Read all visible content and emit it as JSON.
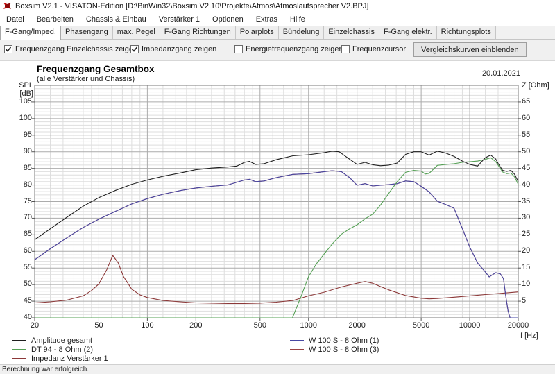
{
  "window": {
    "title": "Boxsim V2.1 - VISATON-Edition [D:\\BinWin32\\Boxsim V2.10\\Projekte\\Atmos\\Atmoslautsprecher V2.BPJ]"
  },
  "menu": {
    "items": [
      "Datei",
      "Bearbeiten",
      "Chassis & Einbau",
      "Verstärker 1",
      "Optionen",
      "Extras",
      "Hilfe"
    ]
  },
  "tabs": {
    "items": [
      {
        "label": "F-Gang/Imped.",
        "active": true
      },
      {
        "label": "Phasengang",
        "active": false
      },
      {
        "label": "max. Pegel",
        "active": false
      },
      {
        "label": "F-Gang Richtungen",
        "active": false
      },
      {
        "label": "Polarplots",
        "active": false
      },
      {
        "label": "Bündelung",
        "active": false
      },
      {
        "label": "Einzelchassis",
        "active": false
      },
      {
        "label": "F-Gang elektr.",
        "active": false
      },
      {
        "label": "Richtungsplots",
        "active": false
      }
    ]
  },
  "toolbar": {
    "checkboxes": [
      {
        "label": "Frequenzgang Einzelchassis zeigen",
        "checked": true,
        "x": 6
      },
      {
        "label": "Impedanzgang zeigen",
        "checked": true,
        "x": 188
      },
      {
        "label": "Energiefrequenzgang zeigen",
        "checked": false,
        "x": 338
      },
      {
        "label": "Frequenzcursor",
        "checked": false,
        "x": 492
      }
    ],
    "compare_button": "Vergleichskurven einblenden"
  },
  "chart": {
    "title": "Frequenzgang Gesamtbox",
    "subtitle": "(alle Verstärker und Chassis)",
    "date": "20.01.2021",
    "y_left_label": "SPL [dB]",
    "y_right_label": "Z [Ohm]",
    "x_label": "f [Hz]"
  },
  "chart_data": {
    "type": "line",
    "title": "Frequenzgang Gesamtbox",
    "subtitle": "(alle Verstärker und Chassis)",
    "x_axis": {
      "label": "f [Hz]",
      "scale": "log",
      "min": 20,
      "max": 20000,
      "ticks": [
        20,
        50,
        100,
        200,
        500,
        1000,
        2000,
        5000,
        10000,
        20000
      ]
    },
    "y_left_axis": {
      "label": "SPL [dB]",
      "min": 40,
      "max": 110,
      "ticks": [
        40,
        45,
        50,
        55,
        60,
        65,
        70,
        75,
        80,
        85,
        90,
        95,
        100,
        105
      ]
    },
    "y_right_axis": {
      "label": "Z [Ohm]",
      "min": 0,
      "max": 70,
      "ticks": [
        5,
        10,
        15,
        20,
        25,
        30,
        35,
        40,
        45,
        50,
        55,
        60,
        65
      ]
    },
    "grid": {
      "minor_color": "#dedede",
      "major_color": "#ababab",
      "border_color": "#7a7a7a"
    },
    "series": [
      {
        "name": "Amplitude gesamt",
        "color": "#1e1e1e",
        "axis": "spl",
        "legend_col": 0,
        "legend_row": 0,
        "points": [
          [
            20,
            63.5
          ],
          [
            25,
            66.8
          ],
          [
            31.5,
            70.2
          ],
          [
            40,
            73.6
          ],
          [
            50,
            76.2
          ],
          [
            63,
            78.3
          ],
          [
            80,
            80.2
          ],
          [
            100,
            81.5
          ],
          [
            125,
            82.6
          ],
          [
            160,
            83.6
          ],
          [
            200,
            84.6
          ],
          [
            250,
            85.1
          ],
          [
            315,
            85.4
          ],
          [
            360,
            85.7
          ],
          [
            400,
            86.8
          ],
          [
            430,
            87.1
          ],
          [
            470,
            86.2
          ],
          [
            530,
            86.4
          ],
          [
            630,
            87.6
          ],
          [
            710,
            88.2
          ],
          [
            800,
            88.8
          ],
          [
            1000,
            89.1
          ],
          [
            1250,
            89.7
          ],
          [
            1400,
            90.2
          ],
          [
            1550,
            90.0
          ],
          [
            1700,
            88.6
          ],
          [
            2000,
            86.2
          ],
          [
            2240,
            86.8
          ],
          [
            2500,
            86.1
          ],
          [
            2800,
            85.8
          ],
          [
            3150,
            86.0
          ],
          [
            3550,
            86.6
          ],
          [
            4000,
            89.2
          ],
          [
            4500,
            90.0
          ],
          [
            5000,
            90.0
          ],
          [
            5600,
            89.0
          ],
          [
            6300,
            90.2
          ],
          [
            7100,
            89.6
          ],
          [
            8000,
            88.6
          ],
          [
            9000,
            87.2
          ],
          [
            10000,
            86.2
          ],
          [
            11200,
            85.7
          ],
          [
            12500,
            88.2
          ],
          [
            13500,
            89.0
          ],
          [
            14500,
            87.8
          ],
          [
            15000,
            86.5
          ],
          [
            16000,
            84.4
          ],
          [
            17000,
            84.1
          ],
          [
            18000,
            84.4
          ],
          [
            19000,
            83.2
          ],
          [
            20000,
            81.0
          ]
        ]
      },
      {
        "name": "W 100 S - 8 Ohm (1)",
        "color": "#4747a3",
        "axis": "spl",
        "legend_col": 1,
        "legend_row": 0,
        "points": [
          [
            20,
            57.5
          ],
          [
            25,
            60.8
          ],
          [
            31.5,
            64.0
          ],
          [
            40,
            67.2
          ],
          [
            50,
            69.7
          ],
          [
            63,
            72.0
          ],
          [
            80,
            74.3
          ],
          [
            100,
            75.9
          ],
          [
            125,
            77.2
          ],
          [
            160,
            78.3
          ],
          [
            200,
            79.1
          ],
          [
            250,
            79.6
          ],
          [
            315,
            80.0
          ],
          [
            400,
            81.5
          ],
          [
            430,
            81.7
          ],
          [
            470,
            81.0
          ],
          [
            530,
            81.2
          ],
          [
            630,
            82.2
          ],
          [
            800,
            83.2
          ],
          [
            1000,
            83.4
          ],
          [
            1250,
            84.0
          ],
          [
            1400,
            84.3
          ],
          [
            1600,
            84.0
          ],
          [
            1800,
            82.2
          ],
          [
            2000,
            79.9
          ],
          [
            2240,
            80.4
          ],
          [
            2500,
            79.7
          ],
          [
            2800,
            79.9
          ],
          [
            3150,
            80.1
          ],
          [
            3550,
            80.4
          ],
          [
            4000,
            81.2
          ],
          [
            4500,
            81.0
          ],
          [
            5000,
            79.6
          ],
          [
            5600,
            77.9
          ],
          [
            6300,
            75.1
          ],
          [
            7100,
            74.1
          ],
          [
            8000,
            73.0
          ],
          [
            9000,
            66.9
          ],
          [
            10000,
            61.3
          ],
          [
            11200,
            56.5
          ],
          [
            12500,
            53.8
          ],
          [
            13200,
            52.3
          ],
          [
            14500,
            53.6
          ],
          [
            15500,
            53.2
          ],
          [
            16200,
            51.8
          ],
          [
            16800,
            46.0
          ],
          [
            17300,
            42.0
          ],
          [
            17800,
            40.0
          ],
          [
            20000,
            40.0
          ]
        ]
      },
      {
        "name": "DT 94 - 8 Ohm (2)",
        "color": "#55a055",
        "axis": "spl",
        "legend_col": 0,
        "legend_row": 1,
        "points": [
          [
            20,
            40.0
          ],
          [
            795,
            40.0
          ],
          [
            850,
            43.5
          ],
          [
            900,
            46.5
          ],
          [
            1000,
            52.4
          ],
          [
            1120,
            56.3
          ],
          [
            1250,
            59.2
          ],
          [
            1400,
            62.2
          ],
          [
            1600,
            65.2
          ],
          [
            1800,
            66.8
          ],
          [
            2000,
            68.0
          ],
          [
            2240,
            69.8
          ],
          [
            2500,
            71.2
          ],
          [
            2800,
            74.0
          ],
          [
            3150,
            77.5
          ],
          [
            3550,
            81.0
          ],
          [
            4000,
            83.8
          ],
          [
            4500,
            84.4
          ],
          [
            5000,
            84.2
          ],
          [
            5300,
            83.3
          ],
          [
            5600,
            83.5
          ],
          [
            6300,
            85.9
          ],
          [
            7100,
            86.2
          ],
          [
            8000,
            86.4
          ],
          [
            9000,
            86.8
          ],
          [
            10000,
            87.0
          ],
          [
            11200,
            87.2
          ],
          [
            12500,
            87.7
          ],
          [
            13500,
            88.2
          ],
          [
            14500,
            87.0
          ],
          [
            15000,
            86.0
          ],
          [
            16000,
            83.9
          ],
          [
            17000,
            83.4
          ],
          [
            18000,
            83.6
          ],
          [
            19000,
            82.4
          ],
          [
            20000,
            80.2
          ]
        ]
      },
      {
        "name": "W 100 S - 8 Ohm (3)",
        "color": "#9a4343",
        "axis": "spl",
        "legend_col": 1,
        "legend_row": 1,
        "points": [
          [
            20,
            57.5
          ],
          [
            25,
            60.8
          ],
          [
            31.5,
            64.0
          ],
          [
            40,
            67.2
          ],
          [
            50,
            69.7
          ],
          [
            63,
            72.0
          ],
          [
            80,
            74.3
          ],
          [
            100,
            75.9
          ],
          [
            125,
            77.2
          ],
          [
            160,
            78.3
          ],
          [
            200,
            79.1
          ],
          [
            250,
            79.6
          ],
          [
            315,
            80.0
          ],
          [
            400,
            81.5
          ],
          [
            430,
            81.7
          ],
          [
            470,
            81.0
          ],
          [
            530,
            81.2
          ],
          [
            630,
            82.2
          ],
          [
            800,
            83.2
          ],
          [
            1000,
            83.4
          ],
          [
            1250,
            84.0
          ],
          [
            1400,
            84.3
          ],
          [
            1600,
            84.0
          ],
          [
            1800,
            82.2
          ],
          [
            2000,
            79.9
          ],
          [
            2240,
            80.4
          ],
          [
            2500,
            79.7
          ],
          [
            2800,
            79.9
          ],
          [
            3150,
            80.1
          ],
          [
            3550,
            80.4
          ],
          [
            4000,
            81.2
          ],
          [
            4500,
            81.0
          ],
          [
            5000,
            79.6
          ],
          [
            5600,
            77.9
          ],
          [
            6300,
            75.1
          ],
          [
            7100,
            74.1
          ],
          [
            8000,
            73.0
          ],
          [
            9000,
            66.9
          ],
          [
            10000,
            61.3
          ],
          [
            11200,
            56.5
          ],
          [
            12500,
            53.8
          ],
          [
            13200,
            52.3
          ],
          [
            14500,
            53.6
          ],
          [
            15500,
            53.2
          ],
          [
            16200,
            51.8
          ],
          [
            16800,
            46.0
          ],
          [
            17300,
            42.0
          ],
          [
            17800,
            40.0
          ],
          [
            20000,
            40.0
          ]
        ]
      },
      {
        "name": "Impedanz Verstärker 1",
        "color": "#8c3838",
        "axis": "ohm",
        "legend_col": 0,
        "legend_row": 2,
        "points": [
          [
            20,
            4.5
          ],
          [
            25,
            4.8
          ],
          [
            31.5,
            5.3
          ],
          [
            40,
            6.6
          ],
          [
            45,
            8.2
          ],
          [
            50,
            10.2
          ],
          [
            56,
            14.5
          ],
          [
            61,
            18.8
          ],
          [
            66,
            16.5
          ],
          [
            71,
            12.5
          ],
          [
            80,
            8.6
          ],
          [
            90,
            6.9
          ],
          [
            100,
            6.1
          ],
          [
            125,
            5.2
          ],
          [
            160,
            4.8
          ],
          [
            200,
            4.5
          ],
          [
            250,
            4.4
          ],
          [
            315,
            4.3
          ],
          [
            400,
            4.3
          ],
          [
            500,
            4.4
          ],
          [
            630,
            4.7
          ],
          [
            800,
            5.2
          ],
          [
            1000,
            6.6
          ],
          [
            1250,
            7.7
          ],
          [
            1600,
            9.3
          ],
          [
            2000,
            10.4
          ],
          [
            2240,
            10.9
          ],
          [
            2500,
            10.4
          ],
          [
            2800,
            9.4
          ],
          [
            3150,
            8.4
          ],
          [
            4000,
            6.7
          ],
          [
            5000,
            5.9
          ],
          [
            5600,
            5.7
          ],
          [
            6300,
            5.8
          ],
          [
            8000,
            6.2
          ],
          [
            10000,
            6.6
          ],
          [
            12500,
            7.0
          ],
          [
            16000,
            7.4
          ],
          [
            20000,
            7.8
          ]
        ]
      }
    ],
    "draw_order": [
      4,
      3,
      1,
      2,
      0
    ],
    "legend_position": "bottom"
  },
  "status": {
    "text": "Berechnung war erfolgreich."
  }
}
